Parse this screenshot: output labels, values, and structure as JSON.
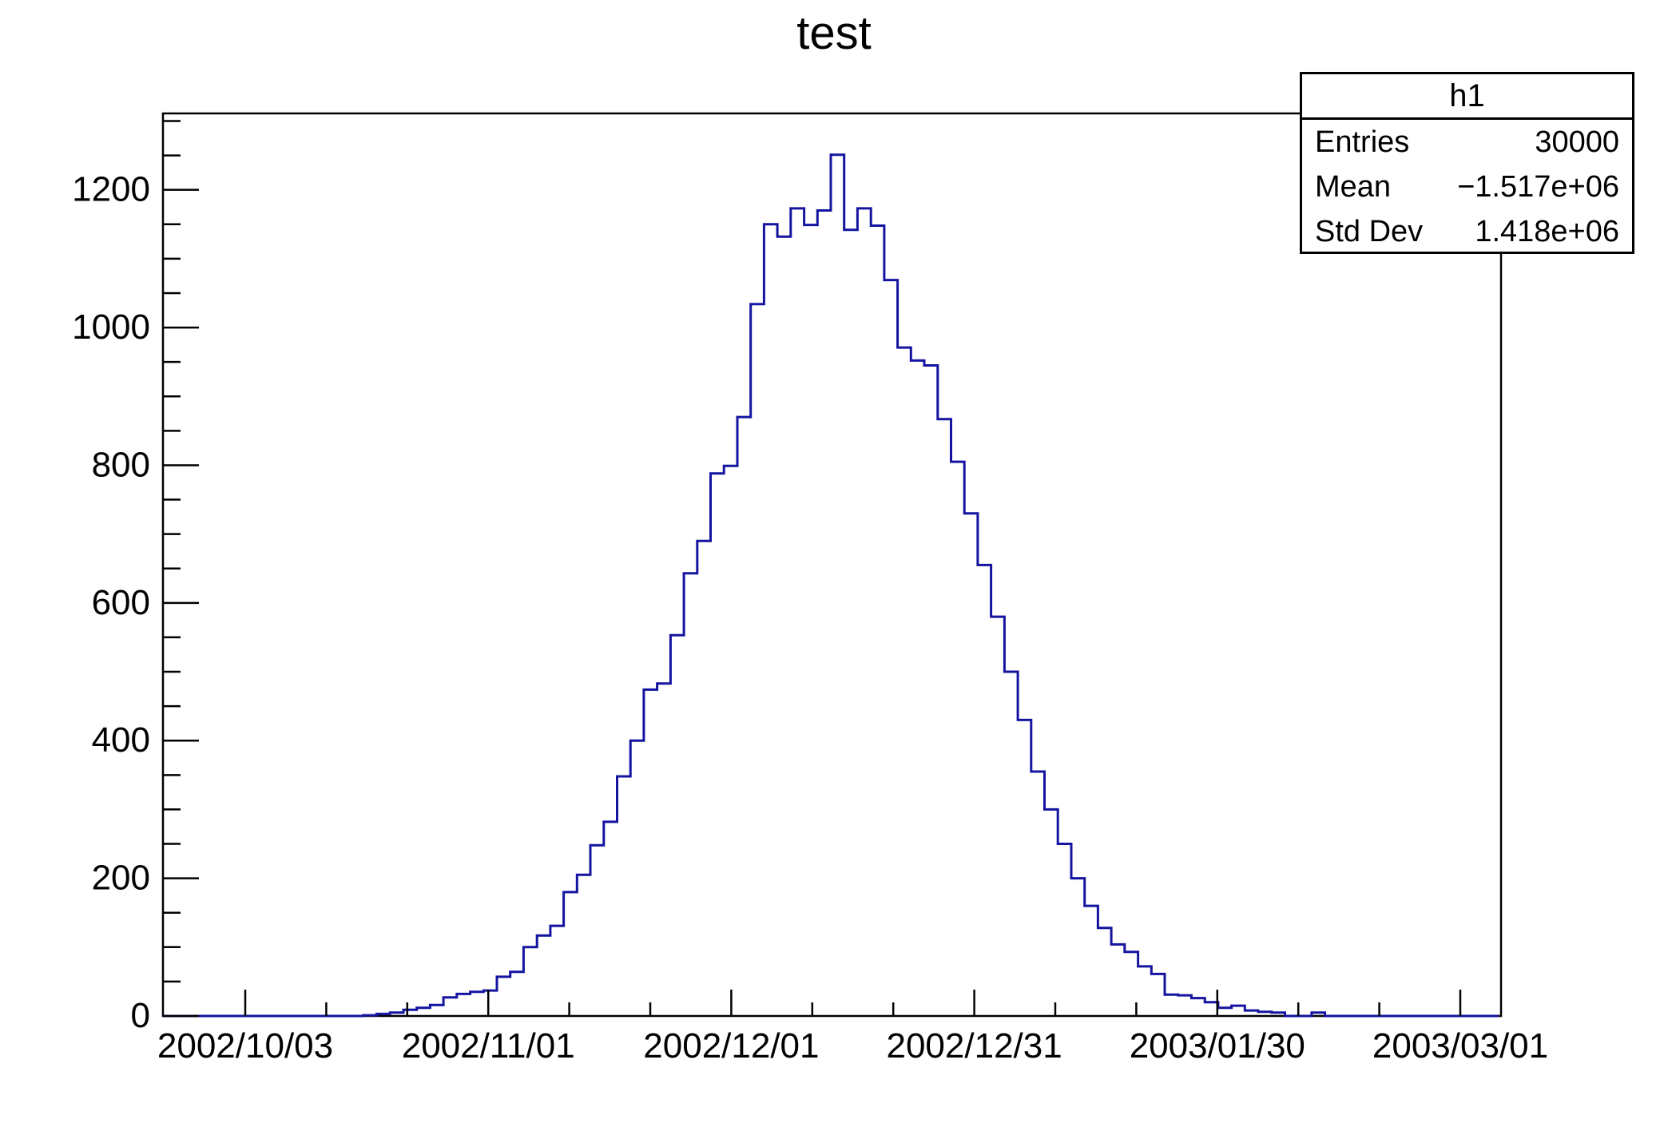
{
  "title": "test",
  "stats": {
    "title": "h1",
    "rows": [
      {
        "label": "Entries",
        "value": "30000"
      },
      {
        "label": "Mean",
        "value": "−1.517e+06"
      },
      {
        "label": "Std Dev",
        "value": "1.418e+06"
      }
    ]
  },
  "chart_data": {
    "type": "bar",
    "subtype": "step-histogram-outline",
    "title": "test",
    "series_name": "h1",
    "entries": 30000,
    "mean_label": "−1.517e+06",
    "std_dev_label": "1.418e+06",
    "line_color": "#1414a0",
    "axis_color": "#000000",
    "legend_position": "top-right-stats-box",
    "grid": false,
    "x_axis": {
      "kind": "time",
      "tick_labels": [
        "2002/10/03",
        "2002/11/01",
        "2002/12/01",
        "2002/12/31",
        "2003/01/30",
        "2003/03/01"
      ],
      "minor_divisions_per_major": 3,
      "range_note": "axis spans ~2002/09/23 to ~2003/03/06, 100 bins of ~1.64 days"
    },
    "y_axis": {
      "tick_values": [
        0,
        200,
        400,
        600,
        800,
        1000,
        1200
      ],
      "minor_step": 50,
      "max": 1311,
      "label": ""
    },
    "bins": {
      "n": 100,
      "counts": [
        0,
        0,
        0,
        0,
        0,
        0,
        0,
        0,
        0,
        0,
        0,
        0,
        0,
        0,
        0,
        1,
        3,
        5,
        9,
        12,
        16,
        27,
        32,
        35,
        37,
        57,
        64,
        100,
        117,
        131,
        180,
        205,
        248,
        282,
        348,
        400,
        474,
        483,
        553,
        643,
        690,
        788,
        799,
        870,
        1034,
        1150,
        1132,
        1173,
        1149,
        1170,
        1251,
        1142,
        1173,
        1148,
        1069,
        971,
        952,
        945,
        867,
        805,
        730,
        655,
        580,
        500,
        430,
        355,
        300,
        250,
        200,
        160,
        128,
        104,
        93,
        72,
        61,
        31,
        30,
        26,
        20,
        12,
        15,
        8,
        6,
        5,
        0,
        0,
        5,
        0,
        0,
        0,
        0,
        0,
        0,
        0,
        0,
        0,
        0,
        0,
        0,
        0,
        0
      ],
      "peak_value": 1251
    }
  }
}
